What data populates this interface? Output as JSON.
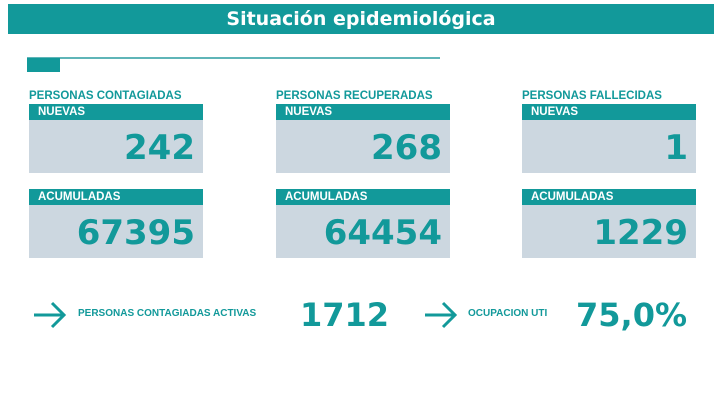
{
  "header": {
    "title": "Situación epidemiológica"
  },
  "cards": [
    {
      "title": "PERSONAS CONTAGIADAS",
      "new_label": "NUEVAS",
      "new_value": "242",
      "acc_label": "ACUMULADAS",
      "acc_value": "67395"
    },
    {
      "title": "PERSONAS RECUPERADAS",
      "new_label": "NUEVAS",
      "new_value": "268",
      "acc_label": "ACUMULADAS",
      "acc_value": "64454"
    },
    {
      "title": "PERSONAS FALLECIDAS",
      "new_label": "NUEVAS",
      "new_value": "1",
      "acc_label": "ACUMULADAS",
      "acc_value": "1229"
    }
  ],
  "summary": {
    "active_label": "PERSONAS CONTAGIADAS ACTIVAS",
    "active_value": "1712",
    "uti_label": "OCUPACION UTI",
    "uti_value": "75,0%"
  },
  "colors": {
    "accent": "#12999a",
    "box": "#ccd7e0"
  }
}
